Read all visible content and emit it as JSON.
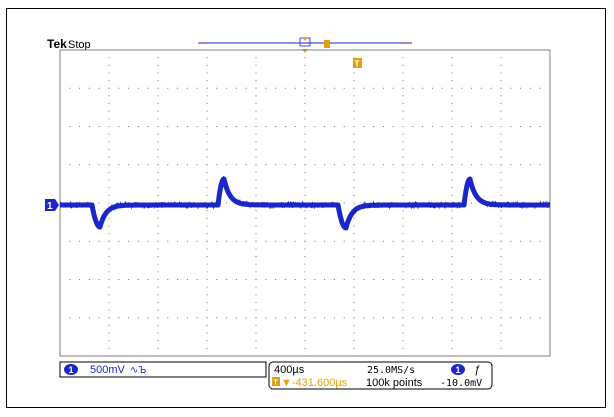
{
  "header": {
    "brand": "Tek",
    "status": "Stop"
  },
  "markers": {
    "channel1_label": "1",
    "trigger_label": "T"
  },
  "readout": {
    "ch1_badge": "1",
    "ch1_scale": "500mV",
    "ch1_bw_symbol": "∿Ъ",
    "timebase": "400µs",
    "sample_rate": "25.0MS/s",
    "trigger_offset": "▼-431.600µs",
    "trigger_offset_badge": "T",
    "record_length": "100k points",
    "trig_source_badge": "1",
    "trig_slope": "ƒ",
    "trig_level": "-10.0mV"
  },
  "colors": {
    "trace": "#1a26c8",
    "trigger": "#e0a010",
    "grid": "#808080"
  }
}
